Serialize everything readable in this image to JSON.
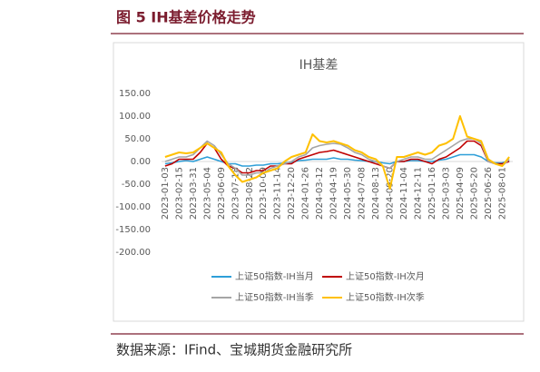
{
  "header": {
    "title": "图 5 IH基差价格走势"
  },
  "chart_data": {
    "type": "line",
    "title": "IH基差",
    "categories": [
      "2023-01-03",
      null,
      "2023-02-15",
      null,
      "2023-03-31",
      null,
      "2023-05-04",
      null,
      "2023-06-09",
      null,
      "2023-07-18",
      null,
      "2023-08-22",
      null,
      "2023-10-09",
      null,
      "2023-11-14",
      null,
      "2023-12-20",
      null,
      "2024-01-26",
      null,
      "2024-03-12",
      null,
      "2024-04-19",
      null,
      "2024-05-30",
      null,
      "2024-07-08",
      null,
      "2024-08-13",
      null,
      "2024-09-20",
      null,
      "2024-11-04",
      null,
      "2024-12-11",
      null,
      "2025-01-16",
      null,
      "2025-03-03",
      null,
      "2025-04-09",
      null,
      "2025-05-20",
      null,
      "2025-06-26",
      null,
      "2025-08-01",
      null
    ],
    "series": [
      {
        "name": "上证50指数-IH当月",
        "color": "#2e9fd8",
        "values": [
          -5,
          -3,
          0,
          2,
          0,
          5,
          10,
          5,
          0,
          -5,
          -5,
          -10,
          -10,
          -8,
          -8,
          -5,
          -5,
          -3,
          -2,
          2,
          3,
          5,
          5,
          5,
          8,
          5,
          5,
          3,
          2,
          0,
          0,
          -3,
          -5,
          0,
          0,
          2,
          2,
          0,
          0,
          3,
          5,
          10,
          15,
          15,
          15,
          10,
          0,
          -3,
          -3,
          2
        ]
      },
      {
        "name": "上证50指数-IH次月",
        "color": "#c00000",
        "values": [
          -10,
          -5,
          5,
          5,
          5,
          20,
          40,
          30,
          5,
          -10,
          -15,
          -25,
          -25,
          -20,
          -20,
          -10,
          -10,
          -5,
          -5,
          5,
          10,
          15,
          20,
          22,
          25,
          20,
          15,
          10,
          5,
          0,
          -5,
          -10,
          -15,
          0,
          0,
          5,
          5,
          0,
          -5,
          5,
          10,
          20,
          30,
          45,
          45,
          35,
          0,
          -5,
          -5,
          0
        ]
      },
      {
        "name": "上证50指数-IH当季",
        "color": "#a5a5a5",
        "values": [
          0,
          5,
          10,
          10,
          15,
          30,
          45,
          35,
          15,
          -5,
          -15,
          -30,
          -30,
          -25,
          -25,
          -15,
          -10,
          -5,
          0,
          10,
          15,
          30,
          35,
          38,
          40,
          38,
          30,
          20,
          15,
          5,
          0,
          -10,
          -15,
          0,
          5,
          10,
          10,
          5,
          5,
          15,
          25,
          35,
          45,
          50,
          50,
          40,
          0,
          -5,
          -10,
          5
        ]
      },
      {
        "name": "上证50指数-IH次季",
        "color": "#ffc000",
        "values": [
          10,
          15,
          20,
          18,
          20,
          30,
          40,
          30,
          20,
          -10,
          -30,
          -45,
          -40,
          -35,
          -25,
          -20,
          -15,
          0,
          10,
          15,
          20,
          60,
          45,
          42,
          45,
          40,
          35,
          25,
          20,
          10,
          5,
          -10,
          -60,
          10,
          10,
          15,
          20,
          15,
          20,
          35,
          40,
          50,
          100,
          55,
          50,
          45,
          5,
          -5,
          -10,
          10
        ]
      }
    ],
    "ylim": [
      -200,
      150
    ],
    "yticks": [
      {
        "value": -200,
        "label": "-200.00"
      },
      {
        "value": -150,
        "label": "-150.00"
      },
      {
        "value": -100,
        "label": "-100.00"
      },
      {
        "value": -50,
        "label": "-50.00"
      },
      {
        "value": 0,
        "label": "0.00"
      },
      {
        "value": 50,
        "label": "50.00"
      },
      {
        "value": 100,
        "label": "100.00"
      },
      {
        "value": 150,
        "label": "150.00"
      }
    ]
  },
  "footer": {
    "source": "数据来源：IFind、宝城期货金融研究所"
  }
}
